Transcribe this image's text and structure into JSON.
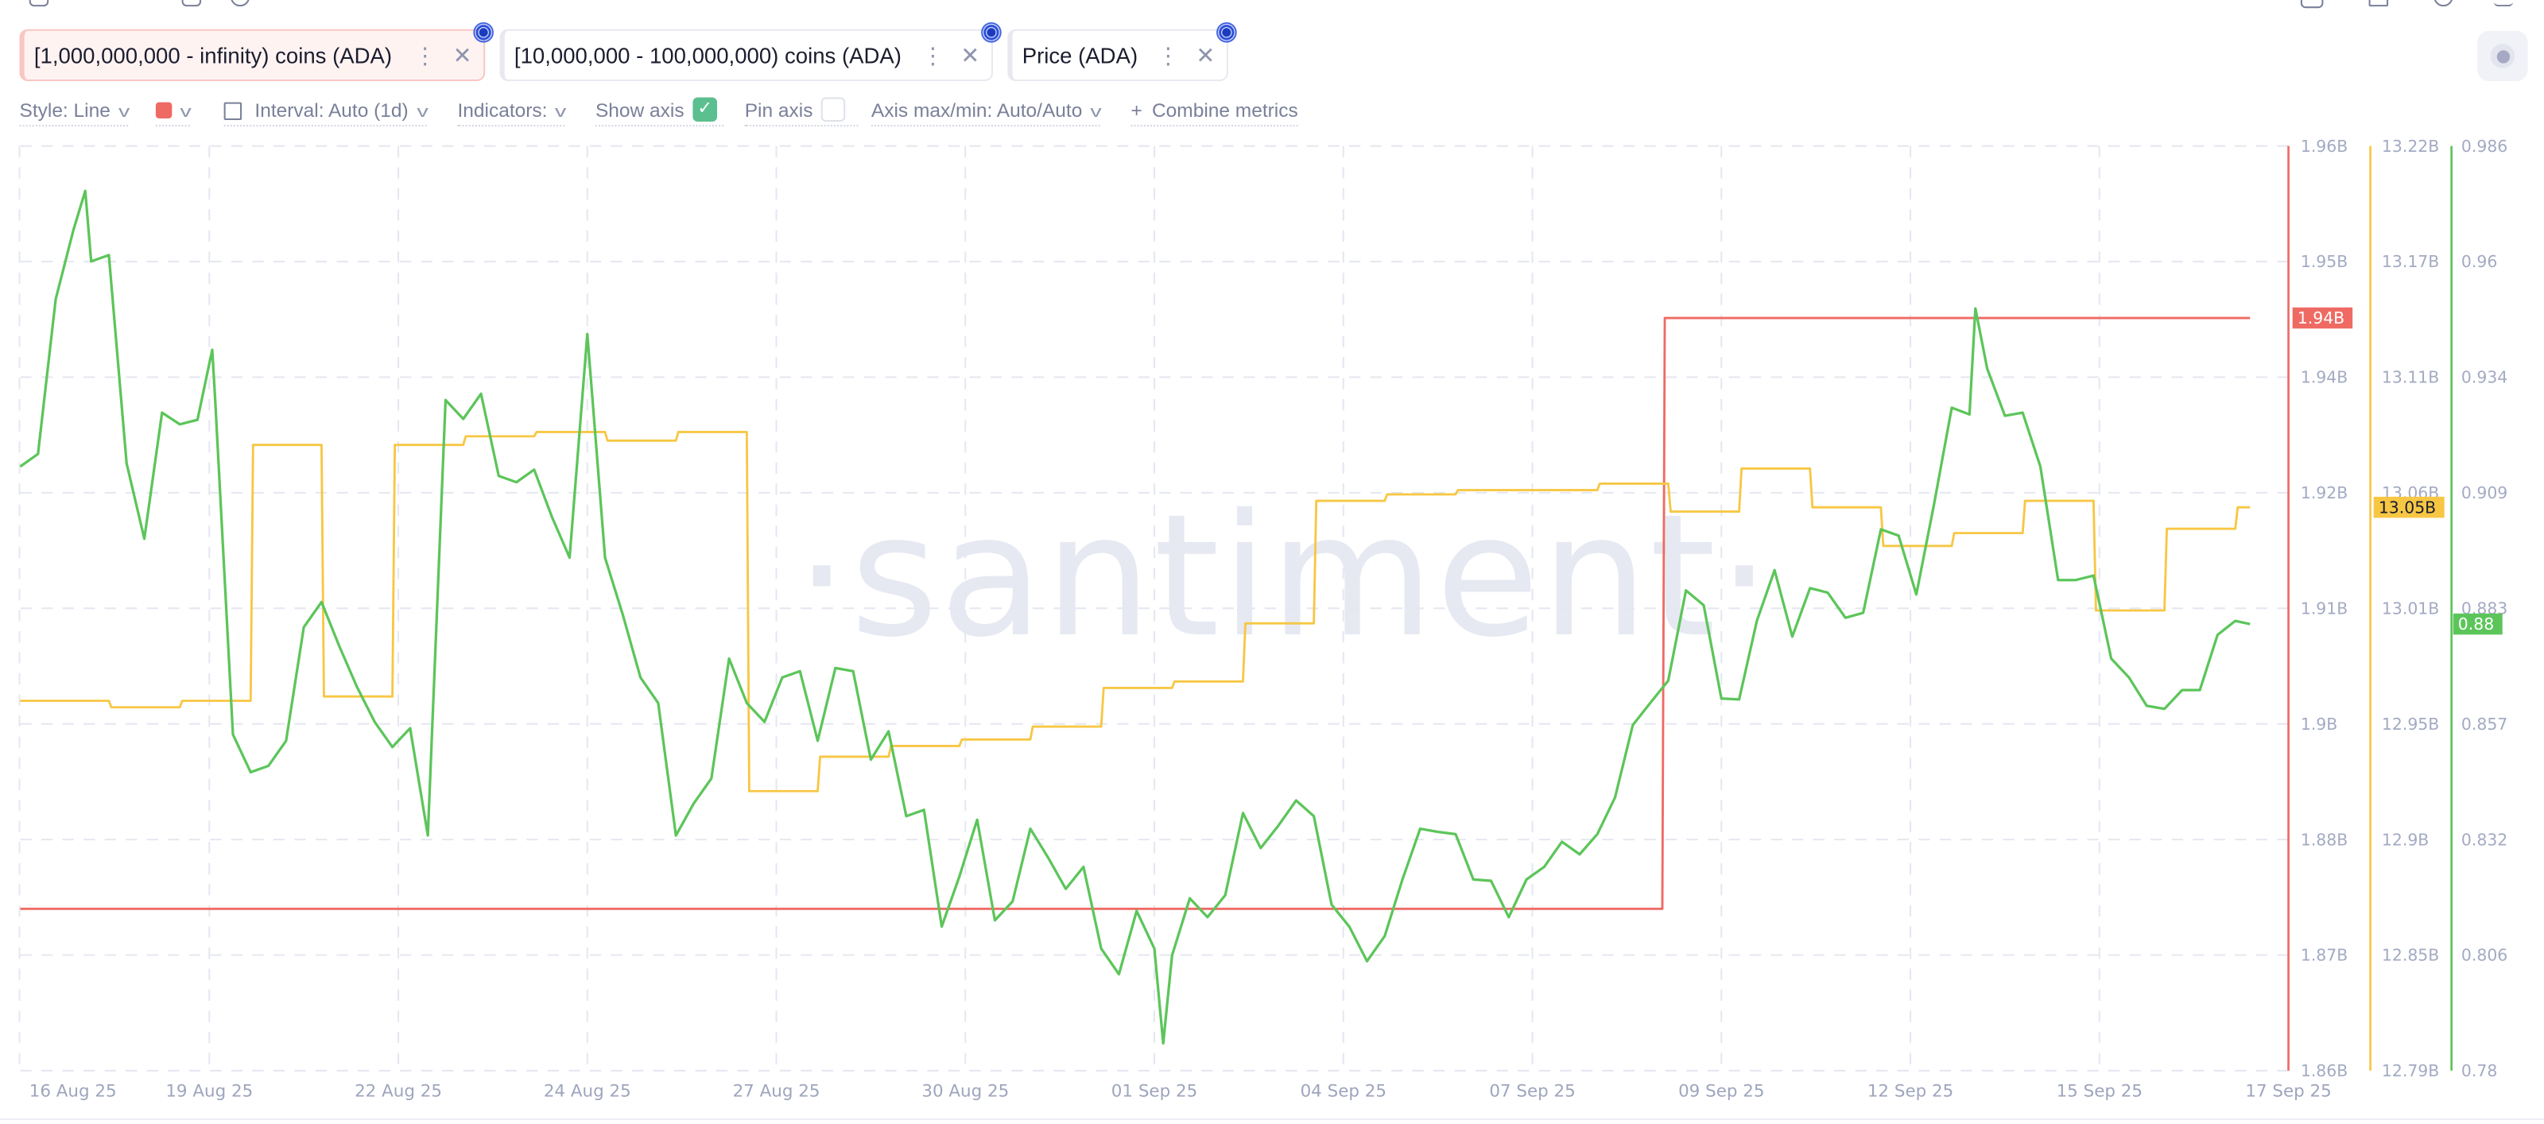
{
  "tabs": [
    {
      "label": "[1,000,000,000 - infinity) coins (ADA)",
      "color": "#ef6a63",
      "active": true
    },
    {
      "label": "[10,000,000 - 100,000,000) coins (ADA)",
      "color": "#f7c744"
    },
    {
      "label": "Price (ADA)",
      "color": "#5cc55a"
    }
  ],
  "tab_menu_icon": "more-vertical-icon",
  "tab_close_icon": "close-icon",
  "tab_asset_icon": "cardano-icon",
  "toolbar": {
    "style_label": "Style: Line",
    "color_swatch": "#ef6a63",
    "interval_label": "Interval: Auto (1d)",
    "indicators_label": "Indicators:",
    "show_axis_label": "Show axis",
    "show_axis_checked": true,
    "pin_axis_label": "Pin axis",
    "pin_axis_checked": false,
    "axis_minmax_label": "Axis max/min: Auto/Auto",
    "combine_plus": "+",
    "combine_label": "Combine metrics"
  },
  "watermark": "·santiment·",
  "chart_data": {
    "type": "line",
    "x_range": [
      "2025-08-16 00:00",
      "2025-09-17 00:00"
    ],
    "x_tick_labels": [
      "16 Aug 25",
      "19 Aug 25",
      "22 Aug 25",
      "24 Aug 25",
      "27 Aug 25",
      "30 Aug 25",
      "01 Sep 25",
      "04 Sep 25",
      "07 Sep 25",
      "09 Sep 25",
      "12 Sep 25",
      "15 Sep 25",
      "17 Sep 25"
    ],
    "grid": true,
    "axes": [
      {
        "series": "red",
        "ylim": [
          1.86,
          1.96
        ],
        "unit": "B",
        "tick_labels": [
          "1.96B",
          "1.95B",
          "1.94B",
          "1.92B",
          "1.91B",
          "1.9B",
          "1.88B",
          "1.87B",
          "1.86B"
        ],
        "last_value_label": "1.94B",
        "color": "#ef6a63"
      },
      {
        "series": "yellow",
        "ylim": [
          12.79,
          13.22
        ],
        "unit": "B",
        "tick_labels": [
          "13.22B",
          "13.17B",
          "13.11B",
          "13.06B",
          "13.01B",
          "12.95B",
          "12.9B",
          "12.85B",
          "12.79B"
        ],
        "last_value_label": "13.05B",
        "color": "#f7c744"
      },
      {
        "series": "green",
        "ylim": [
          0.78,
          0.986
        ],
        "tick_labels": [
          "0.986",
          "0.96",
          "0.934",
          "0.909",
          "0.883",
          "0.857",
          "0.832",
          "0.806",
          "0.78"
        ],
        "last_value_label": "0.88",
        "color": "#5cc55a"
      }
    ],
    "series": [
      {
        "name": "[1,000,000,000 - infinity) coins (ADA)",
        "key": "red",
        "color": "#ef6a63",
        "step": true,
        "end": "2025-09-16 11:00",
        "points": [
          [
            "2025-08-16 00:00",
            1.8775
          ],
          [
            "2025-09-08 04:00",
            1.9414
          ]
        ]
      },
      {
        "name": "[10,000,000 - 100,000,000) coins (ADA)",
        "key": "yellow",
        "color": "#f7c744",
        "step": true,
        "end": "2025-09-16 11:00",
        "points": [
          [
            "2025-08-16 00:00",
            12.962
          ],
          [
            "2025-08-17 06:00",
            12.959
          ],
          [
            "2025-08-18 06:00",
            12.962
          ],
          [
            "2025-08-19 06:00",
            13.081
          ],
          [
            "2025-08-20 06:00",
            12.964
          ],
          [
            "2025-08-21 06:00",
            13.081
          ],
          [
            "2025-08-22 06:00",
            13.085
          ],
          [
            "2025-08-23 06:00",
            13.087
          ],
          [
            "2025-08-24 06:00",
            13.083
          ],
          [
            "2025-08-25 06:00",
            13.087
          ],
          [
            "2025-08-26 06:00",
            12.92
          ],
          [
            "2025-08-27 06:00",
            12.936
          ],
          [
            "2025-08-28 06:00",
            12.941
          ],
          [
            "2025-08-29 06:00",
            12.944
          ],
          [
            "2025-08-30 06:00",
            12.95
          ],
          [
            "2025-08-31 06:00",
            12.968
          ],
          [
            "2025-09-01 06:00",
            12.971
          ],
          [
            "2025-09-02 06:00",
            12.998
          ],
          [
            "2025-09-03 06:00",
            13.055
          ],
          [
            "2025-09-04 06:00",
            13.058
          ],
          [
            "2025-09-05 06:00",
            13.06
          ],
          [
            "2025-09-07 06:00",
            13.063
          ],
          [
            "2025-09-08 06:00",
            13.05
          ],
          [
            "2025-09-09 06:00",
            13.07
          ],
          [
            "2025-09-10 06:00",
            13.052
          ],
          [
            "2025-09-11 06:00",
            13.034
          ],
          [
            "2025-09-12 06:00",
            13.04
          ],
          [
            "2025-09-13 06:00",
            13.055
          ],
          [
            "2025-09-14 06:00",
            13.004
          ],
          [
            "2025-09-15 06:00",
            13.042
          ],
          [
            "2025-09-16 06:00",
            13.052
          ]
        ]
      },
      {
        "name": "Price (ADA)",
        "key": "green",
        "color": "#5cc55a",
        "step": false,
        "points": [
          [
            "2025-08-16 00:00",
            0.9146
          ],
          [
            "2025-08-16 06:00",
            0.9174
          ],
          [
            "2025-08-16 12:00",
            0.9519
          ],
          [
            "2025-08-16 18:00",
            0.9673
          ],
          [
            "2025-08-16 22:00",
            0.976
          ],
          [
            "2025-08-17 00:00",
            0.9603
          ],
          [
            "2025-08-17 06:00",
            0.9617
          ],
          [
            "2025-08-17 12:00",
            0.9153
          ],
          [
            "2025-08-17 18:00",
            0.8985
          ],
          [
            "2025-08-18 00:00",
            0.9266
          ],
          [
            "2025-08-18 06:00",
            0.924
          ],
          [
            "2025-08-18 12:00",
            0.925
          ],
          [
            "2025-08-18 17:00",
            0.9406
          ],
          [
            "2025-08-18 18:00",
            0.9294
          ],
          [
            "2025-08-19 00:00",
            0.8549
          ],
          [
            "2025-08-19 06:00",
            0.8465
          ],
          [
            "2025-08-19 12:00",
            0.8479
          ],
          [
            "2025-08-19 18:00",
            0.8535
          ],
          [
            "2025-08-20 00:00",
            0.8788
          ],
          [
            "2025-08-20 06:00",
            0.8844
          ],
          [
            "2025-08-20 12:00",
            0.8746
          ],
          [
            "2025-08-20 18:00",
            0.8655
          ],
          [
            "2025-08-21 00:00",
            0.8577
          ],
          [
            "2025-08-21 06:00",
            0.8521
          ],
          [
            "2025-08-21 12:00",
            0.8563
          ],
          [
            "2025-08-21 18:00",
            0.8324
          ],
          [
            "2025-08-22 00:00",
            0.9294
          ],
          [
            "2025-08-22 06:00",
            0.9252
          ],
          [
            "2025-08-22 12:00",
            0.9308
          ],
          [
            "2025-08-22 18:00",
            0.9125
          ],
          [
            "2025-08-23 00:00",
            0.9111
          ],
          [
            "2025-08-23 06:00",
            0.9139
          ],
          [
            "2025-08-23 12:00",
            0.9034
          ],
          [
            "2025-08-23 18:00",
            0.8943
          ],
          [
            "2025-08-24 00:00",
            0.9441
          ],
          [
            "2025-08-24 06:00",
            0.8943
          ],
          [
            "2025-08-24 12:00",
            0.8816
          ],
          [
            "2025-08-24 18:00",
            0.8676
          ],
          [
            "2025-08-25 00:00",
            0.8619
          ],
          [
            "2025-08-25 06:00",
            0.8324
          ],
          [
            "2025-08-25 12:00",
            0.8395
          ],
          [
            "2025-08-25 18:00",
            0.8451
          ],
          [
            "2025-08-26 00:00",
            0.8718
          ],
          [
            "2025-08-26 06:00",
            0.8619
          ],
          [
            "2025-08-26 12:00",
            0.8577
          ],
          [
            "2025-08-26 18:00",
            0.8676
          ],
          [
            "2025-08-27 00:00",
            0.869
          ],
          [
            "2025-08-27 06:00",
            0.8535
          ],
          [
            "2025-08-27 12:00",
            0.8697
          ],
          [
            "2025-08-27 18:00",
            0.869
          ],
          [
            "2025-08-28 00:00",
            0.8493
          ],
          [
            "2025-08-28 06:00",
            0.8556
          ],
          [
            "2025-08-28 12:00",
            0.8367
          ],
          [
            "2025-08-28 18:00",
            0.8381
          ],
          [
            "2025-08-29 00:00",
            0.8121
          ],
          [
            "2025-08-29 06:00",
            0.8233
          ],
          [
            "2025-08-29 12:00",
            0.8359
          ],
          [
            "2025-08-29 18:00",
            0.8135
          ],
          [
            "2025-08-30 00:00",
            0.8177
          ],
          [
            "2025-08-30 06:00",
            0.8339
          ],
          [
            "2025-08-30 12:00",
            0.8275
          ],
          [
            "2025-08-30 18:00",
            0.8205
          ],
          [
            "2025-08-31 00:00",
            0.8254
          ],
          [
            "2025-08-31 06:00",
            0.8072
          ],
          [
            "2025-08-31 12:00",
            0.8015
          ],
          [
            "2025-08-31 18:00",
            0.8156
          ],
          [
            "2025-09-01 00:00",
            0.8072
          ],
          [
            "2025-09-01 03:00",
            0.7861
          ],
          [
            "2025-09-01 06:00",
            0.8057
          ],
          [
            "2025-09-01 12:00",
            0.8184
          ],
          [
            "2025-09-01 18:00",
            0.8142
          ],
          [
            "2025-09-02 00:00",
            0.8191
          ],
          [
            "2025-09-02 06:00",
            0.8374
          ],
          [
            "2025-09-02 12:00",
            0.8296
          ],
          [
            "2025-09-02 18:00",
            0.8346
          ],
          [
            "2025-09-03 00:00",
            0.8402
          ],
          [
            "2025-09-03 06:00",
            0.8367
          ],
          [
            "2025-09-03 12:00",
            0.817
          ],
          [
            "2025-09-03 18:00",
            0.8121
          ],
          [
            "2025-09-04 00:00",
            0.8044
          ],
          [
            "2025-09-04 06:00",
            0.81
          ],
          [
            "2025-09-04 12:00",
            0.8226
          ],
          [
            "2025-09-04 18:00",
            0.8339
          ],
          [
            "2025-09-05 00:00",
            0.8332
          ],
          [
            "2025-09-05 06:00",
            0.8327
          ],
          [
            "2025-09-05 12:00",
            0.8226
          ],
          [
            "2025-09-05 18:00",
            0.8223
          ],
          [
            "2025-09-06 00:00",
            0.8142
          ],
          [
            "2025-09-06 06:00",
            0.8226
          ],
          [
            "2025-09-06 12:00",
            0.8254
          ],
          [
            "2025-09-06 18:00",
            0.831
          ],
          [
            "2025-09-07 00:00",
            0.8282
          ],
          [
            "2025-09-07 06:00",
            0.8327
          ],
          [
            "2025-09-07 12:00",
            0.8409
          ],
          [
            "2025-09-07 18:00",
            0.857
          ],
          [
            "2025-09-08 00:00",
            0.862
          ],
          [
            "2025-09-08 06:00",
            0.8669
          ],
          [
            "2025-09-08 12:00",
            0.887
          ],
          [
            "2025-09-08 18:00",
            0.8837
          ],
          [
            "2025-09-09 00:00",
            0.8629
          ],
          [
            "2025-09-09 06:00",
            0.8627
          ],
          [
            "2025-09-09 12:00",
            0.8802
          ],
          [
            "2025-09-09 18:00",
            0.8915
          ],
          [
            "2025-09-10 00:00",
            0.8767
          ],
          [
            "2025-09-10 06:00",
            0.8875
          ],
          [
            "2025-09-10 12:00",
            0.8865
          ],
          [
            "2025-09-10 18:00",
            0.8809
          ],
          [
            "2025-09-11 00:00",
            0.882
          ],
          [
            "2025-09-11 06:00",
            0.9006
          ],
          [
            "2025-09-11 12:00",
            0.8992
          ],
          [
            "2025-09-11 18:00",
            0.8861
          ],
          [
            "2025-09-12 00:00",
            0.9062
          ],
          [
            "2025-09-12 06:00",
            0.9277
          ],
          [
            "2025-09-12 12:00",
            0.9262
          ],
          [
            "2025-09-12 14:00",
            0.9498
          ],
          [
            "2025-09-12 18:00",
            0.9364
          ],
          [
            "2025-09-13 00:00",
            0.9259
          ],
          [
            "2025-09-13 06:00",
            0.9266
          ],
          [
            "2025-09-13 12:00",
            0.9146
          ],
          [
            "2025-09-13 18:00",
            0.8893
          ],
          [
            "2025-09-14 00:00",
            0.8893
          ],
          [
            "2025-09-14 06:00",
            0.8903
          ],
          [
            "2025-09-14 12:00",
            0.8718
          ],
          [
            "2025-09-14 18:00",
            0.8676
          ],
          [
            "2025-09-15 00:00",
            0.8613
          ],
          [
            "2025-09-15 06:00",
            0.8606
          ],
          [
            "2025-09-15 12:00",
            0.8648
          ],
          [
            "2025-09-15 18:00",
            0.8648
          ],
          [
            "2025-09-16 00:00",
            0.8771
          ],
          [
            "2025-09-16 06:00",
            0.8802
          ],
          [
            "2025-09-16 11:00",
            0.8795
          ]
        ]
      }
    ]
  }
}
